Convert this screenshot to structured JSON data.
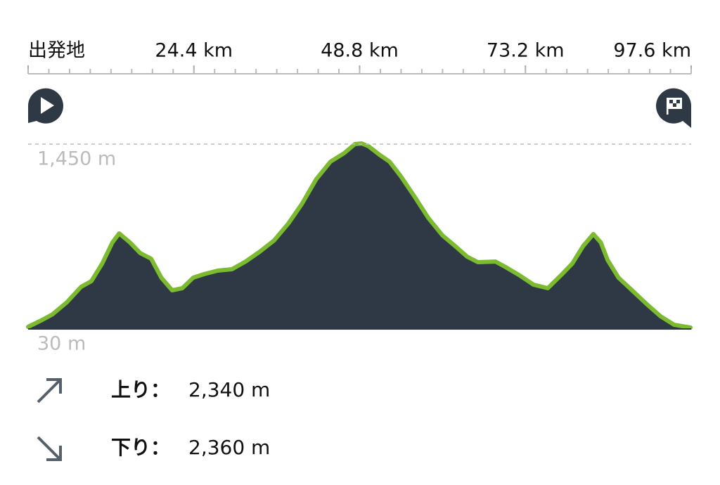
{
  "chart_data": {
    "type": "area",
    "x": [
      0,
      2.1,
      3.6,
      5.7,
      7.8,
      9.3,
      10.9,
      12.4,
      13.4,
      15.0,
      16.5,
      18.1,
      19.6,
      21.2,
      22.7,
      24.3,
      25.9,
      27.9,
      30.0,
      32.0,
      34.1,
      36.2,
      38.3,
      40.3,
      42.4,
      44.5,
      46.5,
      48.1,
      49.1,
      50.1,
      51.7,
      53.2,
      54.8,
      56.9,
      58.9,
      61.0,
      63.1,
      64.6,
      66.2,
      68.8,
      70.3,
      72.4,
      74.4,
      76.5,
      78.6,
      80.1,
      81.7,
      83.2,
      84.3,
      85.3,
      86.9,
      88.9,
      91.0,
      93.1,
      95.1,
      97.5
    ],
    "values": [
      46,
      100,
      143,
      235,
      354,
      397,
      532,
      694,
      764,
      694,
      613,
      570,
      424,
      327,
      343,
      424,
      451,
      478,
      489,
      548,
      624,
      710,
      840,
      991,
      1180,
      1315,
      1380,
      1450,
      1455,
      1434,
      1369,
      1315,
      1207,
      1045,
      883,
      748,
      656,
      586,
      543,
      548,
      505,
      440,
      370,
      343,
      451,
      532,
      667,
      759,
      694,
      559,
      424,
      327,
      224,
      127,
      62,
      41
    ],
    "color": "#7cba2f",
    "fill": "#2e3945",
    "xlim": [
      0,
      97.6
    ],
    "xticks": [
      {
        "value": 0,
        "label": "出発地"
      },
      {
        "value": 24.4,
        "label": "24.4 km"
      },
      {
        "value": 48.8,
        "label": "48.8 km"
      },
      {
        "value": 73.2,
        "label": "73.2 km"
      },
      {
        "value": 97.6,
        "label": "97.6 km"
      }
    ],
    "ylim": [
      30,
      1450
    ],
    "yticks": [
      {
        "value": 1450,
        "label": "1,450 m"
      },
      {
        "value": 30,
        "label": "30 m"
      }
    ]
  },
  "stats": [
    {
      "label": "上り：",
      "value": "2,340 m"
    },
    {
      "label": "下り：",
      "value": "2,360 m"
    }
  ]
}
